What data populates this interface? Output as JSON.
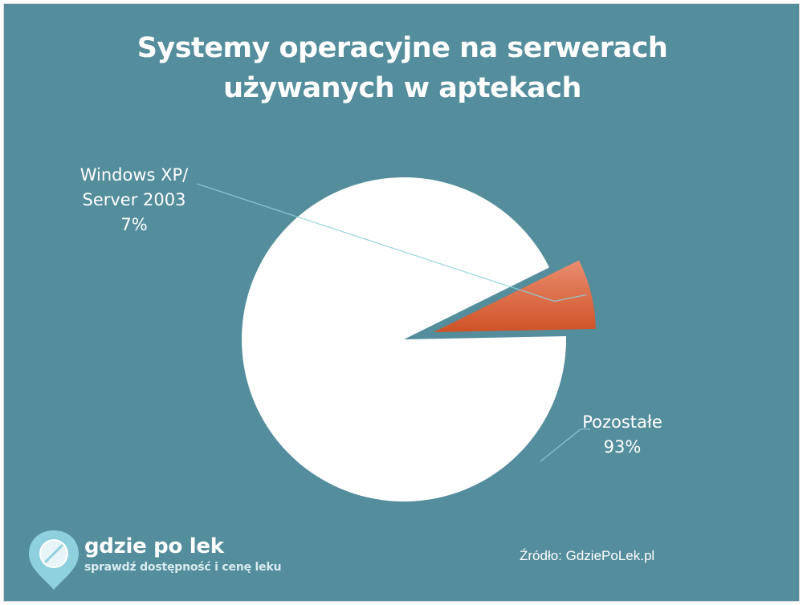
{
  "chart_data": {
    "type": "pie",
    "title": [
      "Systemy operacyjne na serwerach",
      "używanych w aptekach"
    ],
    "slices": [
      {
        "label": [
          "Windows XP/",
          "Server 2003"
        ],
        "value": 7,
        "value_label": "7%",
        "color": "#D8603A",
        "exploded": true
      },
      {
        "label": [
          "Pozostałe"
        ],
        "value": 93,
        "value_label": "93%",
        "color": "#FFFFFF",
        "exploded": false
      }
    ]
  },
  "branding": {
    "name": "gdzie po lek",
    "tagline": "sprawdź dostępność i cenę leku",
    "pin_icon": "pill-pin-icon"
  },
  "source": "Źródło: GdziePoLek.pl",
  "colors": {
    "background": "#548D9C",
    "accent": "#D8603A"
  }
}
